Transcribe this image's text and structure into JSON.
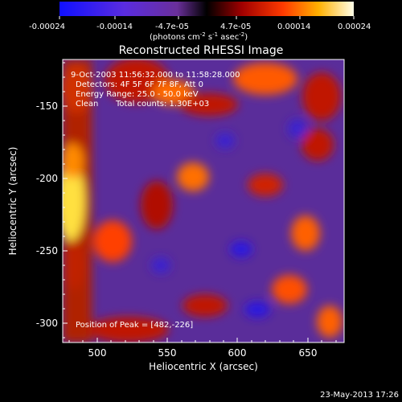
{
  "colorbar": {
    "tick_labels": [
      "-0.00024",
      "-0.00014",
      "-4.7e-05",
      "4.7e-05",
      "0.00014",
      "0.00024"
    ],
    "unit_prefix": "(photons cm",
    "unit_exp1": "-2",
    "unit_mid": " s",
    "unit_exp2": "-1",
    "unit_mid2": " asec",
    "unit_exp3": "-2",
    "unit_suffix": ")"
  },
  "title": "Reconstructed RHESSI Image",
  "annotations": {
    "time_range": "9-Oct-2003 11:56:32.000 to 11:58:28.000",
    "detectors": "Detectors: 4F 5F 6F 7F 8F, Att 0",
    "energy": "Energy Range: 25.0 - 50.0 keV",
    "clean_label": "Clean",
    "total_counts": "Total counts: 1.30E+03",
    "peak": "Position of Peak = [482,-226]"
  },
  "axes": {
    "xlabel": "Heliocentric X (arcsec)",
    "ylabel": "Heliocentric Y (arcsec)",
    "xticks": [
      "500",
      "550",
      "600",
      "650"
    ],
    "yticks": [
      "-150",
      "-200",
      "-250",
      "-300"
    ],
    "xrange": [
      476,
      668
    ],
    "yrange": [
      -318,
      -120
    ]
  },
  "footer": {
    "timestamp": "23-May-2013 17:26"
  },
  "colors": {
    "background": "#000000",
    "blue": "#1a10ff",
    "purple": "#6a2fb0",
    "red": "#d00000",
    "orange": "#ff7a00",
    "yellow": "#ffff60"
  }
}
